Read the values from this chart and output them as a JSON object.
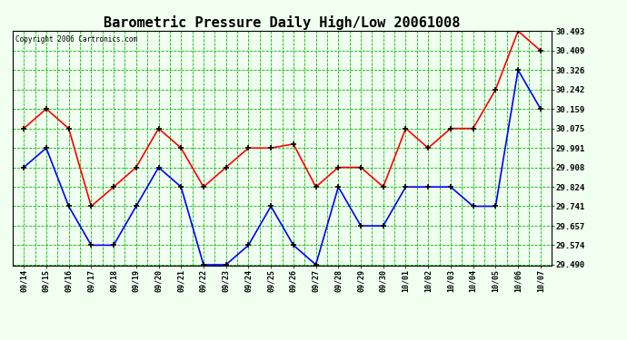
{
  "title": "Barometric Pressure Daily High/Low 20061008",
  "copyright": "Copyright 2006 Cartronics.com",
  "dates": [
    "09/14",
    "09/15",
    "09/16",
    "09/17",
    "09/18",
    "09/19",
    "09/20",
    "09/21",
    "09/22",
    "09/23",
    "09/24",
    "09/25",
    "09/26",
    "09/27",
    "09/28",
    "09/29",
    "09/30",
    "10/01",
    "10/02",
    "10/03",
    "10/04",
    "10/05",
    "10/06",
    "10/07"
  ],
  "highs": [
    30.075,
    30.159,
    30.075,
    29.741,
    29.824,
    29.908,
    30.075,
    29.991,
    29.824,
    29.908,
    29.991,
    29.991,
    30.008,
    29.824,
    29.908,
    29.908,
    29.824,
    30.075,
    29.991,
    30.075,
    30.075,
    30.242,
    30.493,
    30.409
  ],
  "lows": [
    29.908,
    29.991,
    29.741,
    29.574,
    29.574,
    29.741,
    29.908,
    29.824,
    29.49,
    29.49,
    29.574,
    29.741,
    29.574,
    29.49,
    29.824,
    29.657,
    29.657,
    29.824,
    29.824,
    29.824,
    29.741,
    29.741,
    30.326,
    30.159
  ],
  "high_color": "#ff0000",
  "low_color": "#0000ff",
  "bg_color": "#f0fff0",
  "grid_color": "#00bb00",
  "title_fontsize": 11,
  "ylim_min": 29.49,
  "ylim_max": 30.493,
  "yticks": [
    29.49,
    29.574,
    29.657,
    29.741,
    29.824,
    29.908,
    29.991,
    30.075,
    30.159,
    30.242,
    30.326,
    30.409,
    30.493
  ]
}
